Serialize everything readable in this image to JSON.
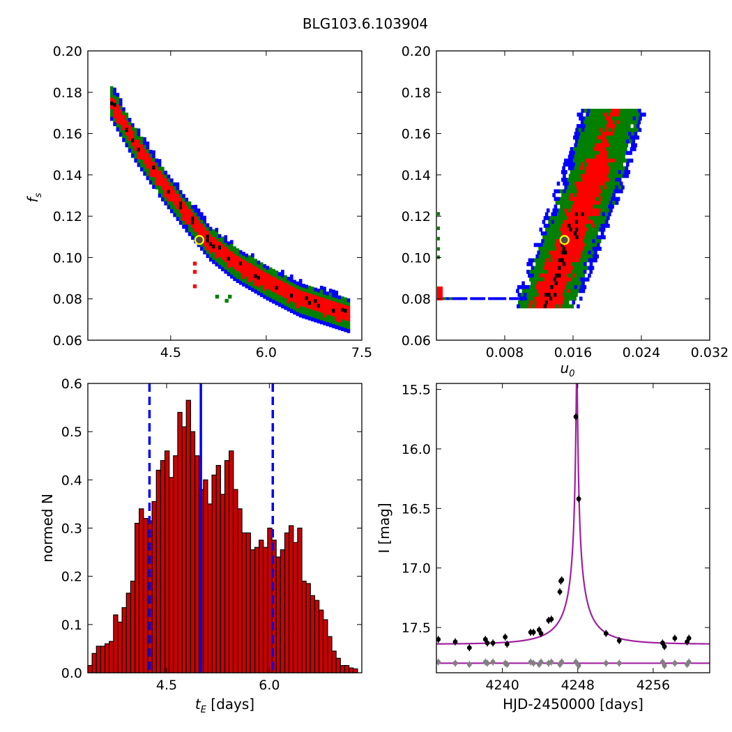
{
  "figure": {
    "title": "BLG103.6.103904"
  },
  "colors": {
    "blue": "#0000ff",
    "green": "#007f00",
    "red": "#ff0000",
    "black": "#000000",
    "marker_fill": "#4c4c4c",
    "marker_edge": "#ffff00",
    "bar_fill": "#cc0000",
    "model": "#a020a0",
    "residual": "#808080"
  },
  "chart_data": [
    {
      "id": "fs-vs-tE",
      "type": "heatmap",
      "xlabel": "",
      "ylabel": "f_s",
      "ylabel_main": "f",
      "ylabel_sub": "s",
      "xlim": [
        3.2,
        7.5
      ],
      "ylim": [
        0.06,
        0.2
      ],
      "xticks": [
        4.5,
        6.0,
        7.5
      ],
      "xtick_labels": [
        "4.5",
        "6.0",
        "7.5"
      ],
      "yticks": [
        0.06,
        0.08,
        0.1,
        0.12,
        0.14,
        0.16,
        0.18,
        0.2
      ],
      "ytick_labels": [
        "0.06",
        "0.08",
        "0.10",
        "0.12",
        "0.14",
        "0.16",
        "0.18",
        "0.20"
      ],
      "best_fit": {
        "x": 4.95,
        "y": 0.1085
      },
      "band_ridge": [
        [
          3.55,
          0.176
        ],
        [
          3.9,
          0.157
        ],
        [
          4.3,
          0.139
        ],
        [
          4.7,
          0.123
        ],
        [
          5.1,
          0.108
        ],
        [
          5.5,
          0.098
        ],
        [
          6.0,
          0.089
        ],
        [
          6.5,
          0.081
        ],
        [
          7.0,
          0.076
        ],
        [
          7.3,
          0.073
        ]
      ]
    },
    {
      "id": "fs-vs-u0",
      "type": "heatmap",
      "xlabel": "u_0",
      "xlabel_main": "u",
      "xlabel_sub": "0",
      "ylabel": "",
      "xlim": [
        0.0,
        0.032
      ],
      "ylim": [
        0.06,
        0.2
      ],
      "xticks": [
        0.008,
        0.016,
        0.024,
        0.032
      ],
      "xtick_labels": [
        "0.008",
        "0.016",
        "0.024",
        "0.032"
      ],
      "yticks": [
        0.06,
        0.08,
        0.1,
        0.12,
        0.14,
        0.16,
        0.18,
        0.2
      ],
      "ytick_labels": [
        "0.06",
        "0.08",
        "0.10",
        "0.12",
        "0.14",
        "0.16",
        "0.18",
        "0.20"
      ],
      "best_fit": {
        "x": 0.015,
        "y": 0.1085
      },
      "band_ridge": [
        [
          0.0125,
          0.076
        ],
        [
          0.0135,
          0.088
        ],
        [
          0.0148,
          0.101
        ],
        [
          0.016,
          0.115
        ],
        [
          0.0172,
          0.128
        ],
        [
          0.0185,
          0.142
        ],
        [
          0.0195,
          0.158
        ],
        [
          0.0205,
          0.172
        ]
      ]
    },
    {
      "id": "tE-histogram",
      "type": "bar",
      "xlabel": "t_E [days]",
      "xlabel_main": "t",
      "xlabel_sub": "E",
      "xlabel_unit": " [days]",
      "ylabel": "normed N",
      "xlim": [
        3.35,
        7.35
      ],
      "ylim": [
        0.0,
        0.6
      ],
      "bin_start": 3.35,
      "bin_width": 0.0625,
      "xticks": [
        4.5,
        6.0
      ],
      "xtick_labels": [
        "4.5",
        "6.0"
      ],
      "yticks": [
        0.0,
        0.1,
        0.2,
        0.3,
        0.4,
        0.5,
        0.6
      ],
      "ytick_labels": [
        "0.0",
        "0.1",
        "0.2",
        "0.3",
        "0.4",
        "0.5",
        "0.6"
      ],
      "values": [
        0.015,
        0.04,
        0.055,
        0.055,
        0.06,
        0.065,
        0.12,
        0.105,
        0.135,
        0.165,
        0.19,
        0.31,
        0.34,
        0.32,
        0.315,
        0.355,
        0.42,
        0.44,
        0.46,
        0.405,
        0.45,
        0.54,
        0.51,
        0.565,
        0.5,
        0.45,
        0.38,
        0.4,
        0.35,
        0.41,
        0.43,
        0.37,
        0.44,
        0.46,
        0.38,
        0.34,
        0.29,
        0.29,
        0.255,
        0.26,
        0.275,
        0.26,
        0.3,
        0.275,
        0.24,
        0.255,
        0.29,
        0.305,
        0.27,
        0.3,
        0.19,
        0.185,
        0.16,
        0.15,
        0.13,
        0.11,
        0.075,
        0.045,
        0.03,
        0.015,
        0.015,
        0.01,
        0.008
      ],
      "vlines": {
        "median": 5.0,
        "lower": 4.25,
        "upper": 6.05
      }
    },
    {
      "id": "light-curve",
      "type": "scatter",
      "xlabel": "HJD-2450000 [days]",
      "ylabel": "I [mag]",
      "xlim": [
        4233.0,
        4262.0
      ],
      "ylim": [
        17.88,
        15.45
      ],
      "xticks": [
        4240,
        4248,
        4256
      ],
      "xtick_labels": [
        "4240",
        "4248",
        "4256"
      ],
      "yticks": [
        15.5,
        16.0,
        16.5,
        17.0,
        17.5
      ],
      "ytick_labels": [
        "15.5",
        "16.0",
        "16.5",
        "17.0",
        "17.5"
      ],
      "model": {
        "t0": 4247.9,
        "u0": 0.015,
        "tE": 5.0,
        "fs": 0.109,
        "base": 17.64
      },
      "residual_level": 17.8,
      "points": [
        [
          4233.2,
          17.6
        ],
        [
          4235.0,
          17.62
        ],
        [
          4236.5,
          17.67
        ],
        [
          4238.2,
          17.6
        ],
        [
          4238.4,
          17.63
        ],
        [
          4239.0,
          17.63
        ],
        [
          4240.3,
          17.58
        ],
        [
          4240.5,
          17.64
        ],
        [
          4243.0,
          17.54
        ],
        [
          4243.3,
          17.54
        ],
        [
          4243.9,
          17.52
        ],
        [
          4244.1,
          17.55
        ],
        [
          4244.9,
          17.44
        ],
        [
          4245.2,
          17.43
        ],
        [
          4246.1,
          17.2
        ],
        [
          4246.2,
          17.11
        ],
        [
          4246.3,
          17.1
        ],
        [
          4247.8,
          15.73
        ],
        [
          4248.1,
          16.42
        ],
        [
          4251.0,
          17.55
        ],
        [
          4252.4,
          17.61
        ],
        [
          4257.0,
          17.63
        ],
        [
          4257.2,
          17.66
        ],
        [
          4258.3,
          17.59
        ],
        [
          4259.6,
          17.62
        ],
        [
          4259.8,
          17.59
        ]
      ],
      "residual_points": [
        [
          4233.2,
          17.79
        ],
        [
          4235.0,
          17.8
        ],
        [
          4236.5,
          17.81
        ],
        [
          4238.2,
          17.79
        ],
        [
          4238.4,
          17.8
        ],
        [
          4239.0,
          17.79
        ],
        [
          4240.3,
          17.8
        ],
        [
          4240.5,
          17.81
        ],
        [
          4243.0,
          17.79
        ],
        [
          4243.3,
          17.8
        ],
        [
          4243.9,
          17.81
        ],
        [
          4244.1,
          17.79
        ],
        [
          4244.9,
          17.8
        ],
        [
          4245.2,
          17.79
        ],
        [
          4246.1,
          17.81
        ],
        [
          4246.2,
          17.8
        ],
        [
          4246.3,
          17.79
        ],
        [
          4247.8,
          17.79
        ],
        [
          4248.1,
          17.82
        ],
        [
          4251.0,
          17.8
        ],
        [
          4252.4,
          17.8
        ],
        [
          4257.0,
          17.79
        ],
        [
          4257.2,
          17.82
        ],
        [
          4258.3,
          17.8
        ],
        [
          4259.6,
          17.81
        ],
        [
          4259.8,
          17.79
        ]
      ]
    }
  ]
}
